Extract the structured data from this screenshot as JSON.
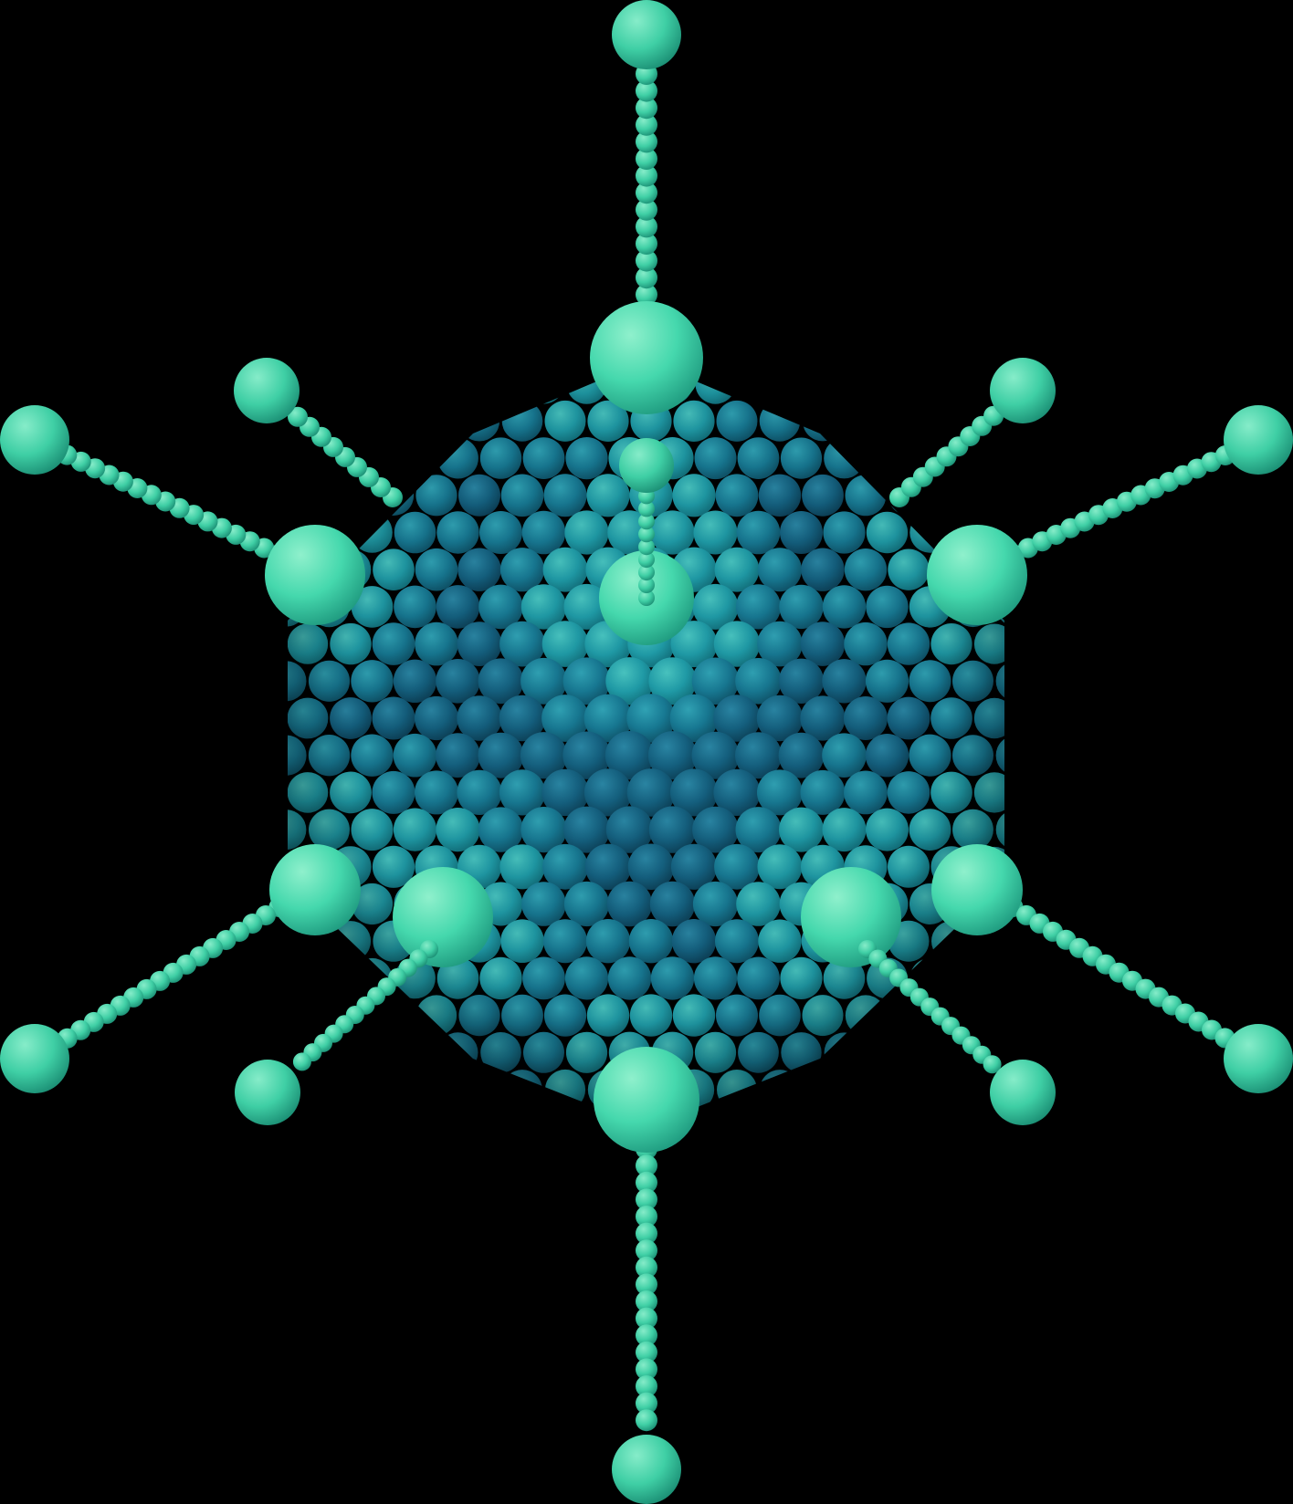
{
  "image": {
    "subject": "virus-model",
    "colors": {
      "background": "#000000",
      "capsid_dark": "#14607f",
      "capsid_mid": "#177892",
      "capsid_light": "#1f9aa6",
      "vertex": "#45d8ad",
      "vertex_highlight": "#8ff0cc",
      "fiber": "#3fcfa5"
    }
  }
}
